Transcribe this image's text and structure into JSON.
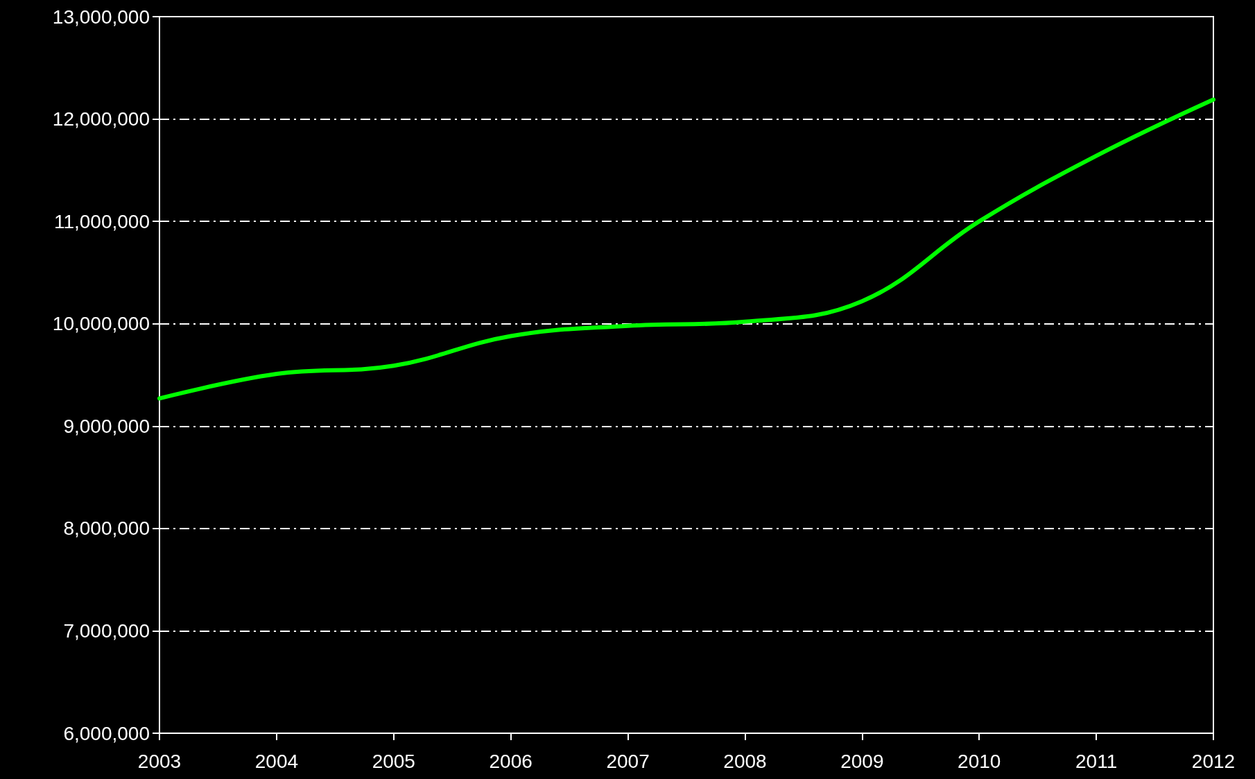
{
  "chart_data": {
    "type": "line",
    "x": [
      2003,
      2004,
      2005,
      2006,
      2007,
      2008,
      2009,
      2010,
      2011,
      2012
    ],
    "series": [
      {
        "color": "#00ff00",
        "values": [
          9270000,
          9510000,
          9590000,
          9880000,
          9980000,
          10020000,
          10220000,
          11000000,
          11640000,
          12190000
        ]
      }
    ],
    "xlim": [
      2003,
      2012
    ],
    "xticks": [
      2003,
      2004,
      2005,
      2006,
      2007,
      2008,
      2009,
      2010,
      2011,
      2012
    ],
    "ylim": [
      6000000,
      13000000
    ],
    "yticks": [
      {
        "value": 6000000,
        "label": "6,000,000"
      },
      {
        "value": 7000000,
        "label": "7,000,000"
      },
      {
        "value": 8000000,
        "label": "8,000,000"
      },
      {
        "value": 9000000,
        "label": "9,000,000"
      },
      {
        "value": 10000000,
        "label": "10,000,000"
      },
      {
        "value": 11000000,
        "label": "11,000,000"
      },
      {
        "value": 12000000,
        "label": "12,000,000"
      },
      {
        "value": 13000000,
        "label": "13,000,000"
      }
    ],
    "grid": "y",
    "marker": "none",
    "line_style": "solid"
  }
}
